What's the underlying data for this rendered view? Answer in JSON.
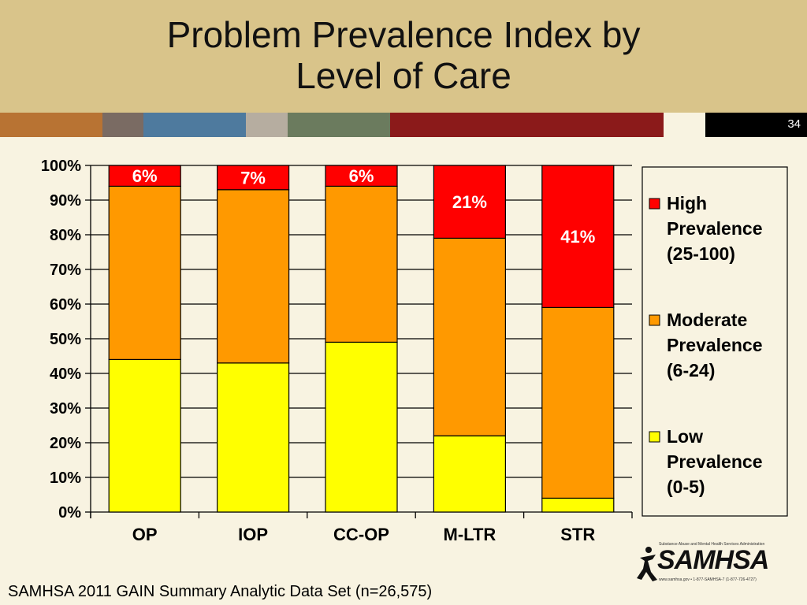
{
  "header": {
    "title_line1": "Problem Prevalence Index by",
    "title_line2": "Level of Care",
    "slide_number": "34",
    "stripe_colors": [
      "#b87333",
      "#7a6b63",
      "#4e7a9e",
      "#b6ada0",
      "#6b7b5e",
      "#8b1a1a"
    ]
  },
  "chart_data": {
    "type": "bar",
    "stacked": true,
    "categories": [
      "OP",
      "IOP",
      "CC-OP",
      "M-LTR",
      "STR"
    ],
    "series": [
      {
        "name": "Low Prevalence (0-5)",
        "color": "#ffff00",
        "values": [
          44,
          43,
          49,
          22,
          4
        ]
      },
      {
        "name": "Moderate Prevalence (6-24)",
        "color": "#ff9900",
        "values": [
          50,
          50,
          45,
          57,
          55
        ]
      },
      {
        "name": "High Prevalence (25-100)",
        "color": "#ff0000",
        "values": [
          6,
          7,
          6,
          21,
          41
        ]
      }
    ],
    "data_labels": [
      "6%",
      "7%",
      "6%",
      "21%",
      "41%"
    ],
    "y_ticks": [
      "0%",
      "10%",
      "20%",
      "30%",
      "40%",
      "50%",
      "60%",
      "70%",
      "80%",
      "90%",
      "100%"
    ],
    "ylim": [
      0,
      100
    ],
    "grid": true,
    "legend_position": "right",
    "legend": [
      {
        "lines": [
          "High",
          "Prevalence",
          "(25-100)"
        ],
        "color": "#ff0000"
      },
      {
        "lines": [
          "Moderate",
          "Prevalence",
          "(6-24)"
        ],
        "color": "#ff9900"
      },
      {
        "lines": [
          "Low",
          "Prevalence",
          "(0-5)"
        ],
        "color": "#ffff00"
      }
    ]
  },
  "logo": {
    "text": "SAMHSA",
    "top_line": "Substance Abuse and Mental Health Services Administration",
    "bottom_line": "www.samhsa.gov • 1-877-SAMHSA-7 (1-877-726-4727)"
  },
  "footer": {
    "source": "SAMHSA 2011 GAIN Summary Analytic Data Set (n=26,575)"
  }
}
